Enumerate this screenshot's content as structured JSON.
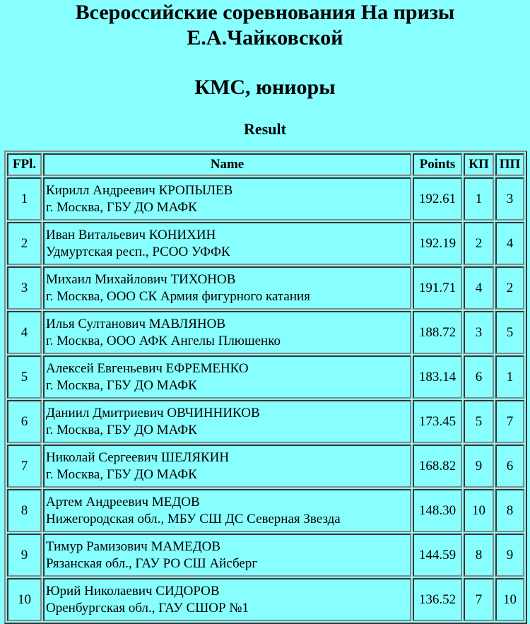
{
  "title_line1": "Всероссийские соревнования На призы",
  "title_line2": "Е.А.Чайковской",
  "category": "КМС, юниоры",
  "section": "Result",
  "columns": [
    "FPl.",
    "Name",
    "Points",
    "КП",
    "ПП"
  ],
  "rows": [
    {
      "fpl": "1",
      "name": "Кирилл Андреевич КРОПЫЛЕВ",
      "club": "г. Москва, ГБУ ДО МАФК",
      "points": "192.61",
      "kp": "1",
      "pp": "3"
    },
    {
      "fpl": "2",
      "name": "Иван Витальевич КОНИХИН",
      "club": "Удмуртская респ., РСОО УФФК",
      "points": "192.19",
      "kp": "2",
      "pp": "4"
    },
    {
      "fpl": "3",
      "name": "Михаил Михайлович ТИХОНОВ",
      "club": "г. Москва, ООО СК Армия фигурного катания",
      "points": "191.71",
      "kp": "4",
      "pp": "2"
    },
    {
      "fpl": "4",
      "name": "Илья Султанович МАВЛЯНОВ",
      "club": "г. Москва, ООО АФК Ангелы Плюшенко",
      "points": "188.72",
      "kp": "3",
      "pp": "5"
    },
    {
      "fpl": "5",
      "name": "Алексей Евгеньевич ЕФРЕМЕНКО",
      "club": "г. Москва, ГБУ ДО МАФК",
      "points": "183.14",
      "kp": "6",
      "pp": "1"
    },
    {
      "fpl": "6",
      "name": "Даниил Дмитриевич ОВЧИННИКОВ",
      "club": "г. Москва, ГБУ ДО МАФК",
      "points": "173.45",
      "kp": "5",
      "pp": "7"
    },
    {
      "fpl": "7",
      "name": "Николай Сергеевич ШЕЛЯКИН",
      "club": "г. Москва, ГБУ ДО МАФК",
      "points": "168.82",
      "kp": "9",
      "pp": "6"
    },
    {
      "fpl": "8",
      "name": "Артем Андреевич МЕДОВ",
      "club": "Нижегородская обл., МБУ СШ ДС Северная Звезда",
      "points": "148.30",
      "kp": "10",
      "pp": "8"
    },
    {
      "fpl": "9",
      "name": "Тимур Рамизович МАМЕДОВ",
      "club": "Рязанская обл., ГАУ РО СШ Айсберг",
      "points": "144.59",
      "kp": "8",
      "pp": "9"
    },
    {
      "fpl": "10",
      "name": "Юрий Николаевич СИДОРОВ",
      "club": "Оренбургская обл., ГАУ СШОР №1",
      "points": "136.52",
      "kp": "7",
      "pp": "10"
    }
  ]
}
